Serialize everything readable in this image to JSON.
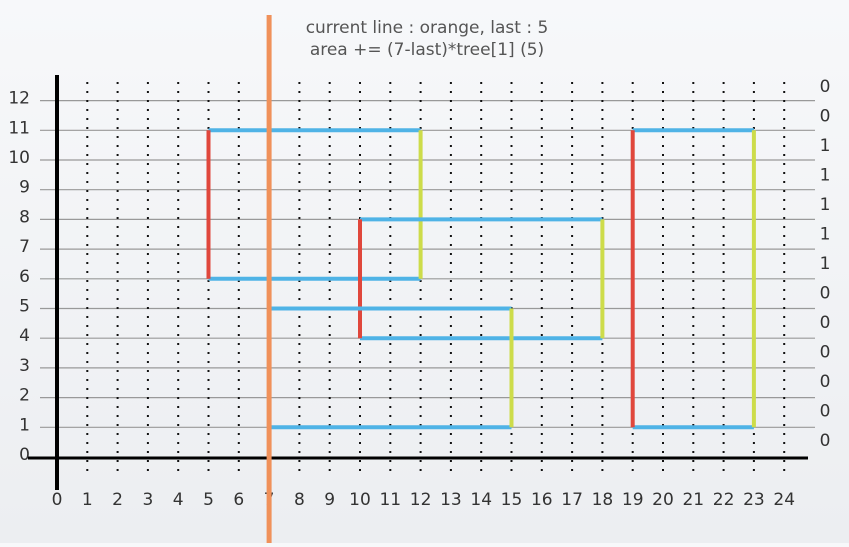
{
  "title": {
    "line1": "current line : orange, last : 5",
    "line2": "area += (7-last)*tree[1] (5)"
  },
  "x_axis": {
    "ticks": [
      0,
      1,
      2,
      3,
      4,
      5,
      6,
      7,
      8,
      9,
      10,
      11,
      12,
      13,
      14,
      15,
      16,
      17,
      18,
      19,
      20,
      21,
      22,
      23,
      24
    ]
  },
  "y_axis": {
    "ticks": [
      0,
      1,
      2,
      3,
      4,
      5,
      6,
      7,
      8,
      9,
      10,
      11,
      12
    ]
  },
  "tree": [
    0,
    0,
    1,
    1,
    1,
    1,
    1,
    0,
    0,
    0,
    0,
    0,
    0
  ],
  "sweep_line": 7,
  "rectangles": [
    {
      "x1": 5,
      "x2": 12,
      "y1": 6,
      "y2": 11
    },
    {
      "x1": 10,
      "x2": 18,
      "y1": 4,
      "y2": 8
    },
    {
      "x1": 7,
      "x2": 15,
      "y1": 1,
      "y2": 5
    },
    {
      "x1": 19,
      "x2": 23,
      "y1": 1,
      "y2": 11
    }
  ]
}
